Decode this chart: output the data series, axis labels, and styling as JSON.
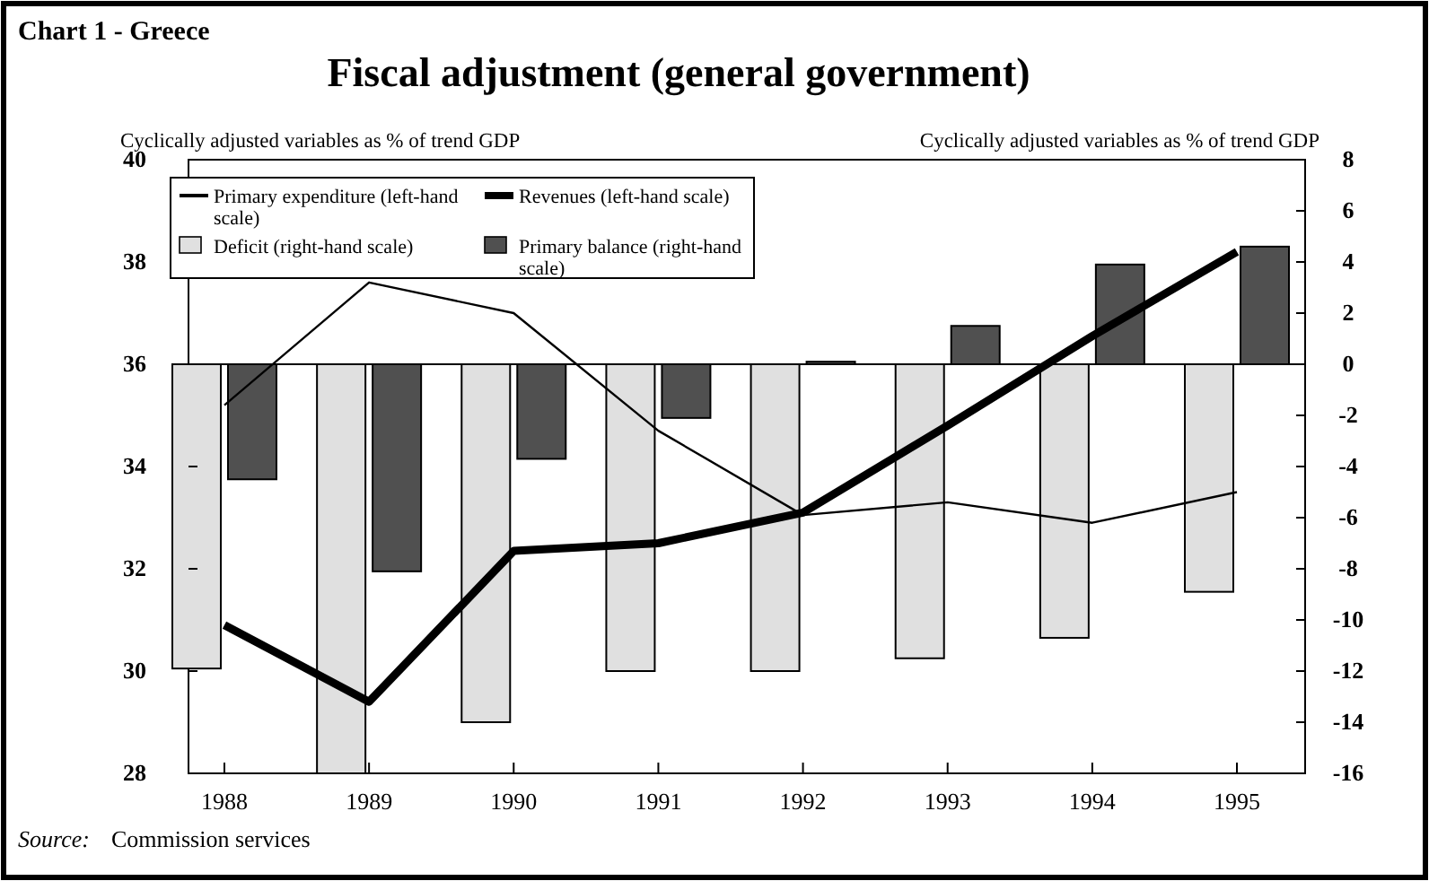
{
  "chart_data": {
    "type": "line",
    "subtitle": "Chart 1 - Greece",
    "title": "Fiscal adjustment (general government)",
    "ylabel": "Cyclically adjusted variables as % of trend GDP",
    "y2label": "Cyclically adjusted variables as % of trend GDP",
    "categories": [
      "1988",
      "1989",
      "1990",
      "1991",
      "1992",
      "1993",
      "1994",
      "1995"
    ],
    "series": [
      {
        "name": "Primary expenditure (left-hand scale)",
        "color": "#000000",
        "values": [
          35.2,
          37.6,
          37.0,
          34.7,
          33.05,
          33.3,
          32.9,
          33.5
        ]
      },
      {
        "name": "Revenues (left-hand scale)",
        "color": "#000000",
        "values": [
          30.9,
          29.4,
          32.35,
          32.5,
          33.1,
          34.8,
          36.55,
          38.2
        ]
      },
      {
        "name": "Deficit (right-hand scale)",
        "type": "bar",
        "axis": "y2",
        "color": "#e0e0e0",
        "values": [
          -11.9,
          -16,
          -14,
          -12,
          -12,
          -11.5,
          -10.7,
          -8.9
        ]
      },
      {
        "name": "Primary balance (right-hand scale)",
        "type": "bar",
        "axis": "y2",
        "color": "#505050",
        "values": [
          -4.5,
          -8.1,
          -3.7,
          -2.1,
          0.1,
          1.5,
          3.9,
          4.6
        ]
      }
    ],
    "ylim": [
      28,
      40
    ],
    "yticks": [
      28,
      30,
      32,
      34,
      36,
      38,
      40
    ],
    "y2lim": [
      -16,
      8
    ],
    "y2ticks": [
      -16,
      -14,
      -12,
      -10,
      -8,
      -6,
      -4,
      -2,
      0,
      2,
      4,
      6,
      8
    ],
    "grid": false,
    "legend": "top left",
    "ref_lines": [
      {
        "axis": "y2",
        "value": 0
      }
    ],
    "annotations": [
      "Source: Commission services"
    ]
  }
}
